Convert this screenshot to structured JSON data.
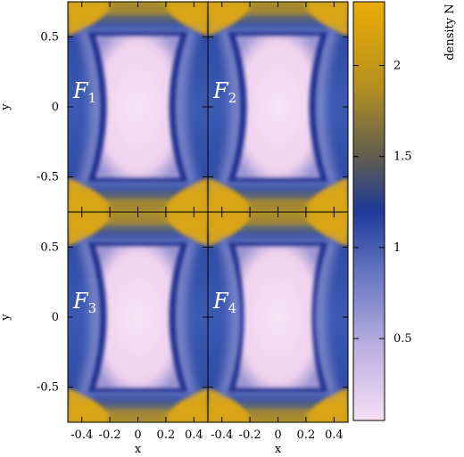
{
  "chart_data": {
    "type": "heatmap",
    "layout": "2x2 panels",
    "panels": [
      {
        "label": "F",
        "subscript": "1"
      },
      {
        "label": "F",
        "subscript": "2"
      },
      {
        "label": "F",
        "subscript": "3"
      },
      {
        "label": "F",
        "subscript": "4"
      }
    ],
    "xlabel": "x",
    "ylabel": "y",
    "xlim": [
      -0.5,
      0.5
    ],
    "ylim": [
      -0.75,
      0.75
    ],
    "x_ticks": [
      -0.4,
      -0.2,
      0,
      0.2,
      0.4
    ],
    "x_tick_labels": [
      "-0.4",
      "-0.2",
      "0",
      "0.2",
      "0.4"
    ],
    "y_ticks": [
      -0.5,
      0,
      0.5
    ],
    "y_tick_labels": [
      "-0.5",
      "0",
      "0.5"
    ],
    "colorbar": {
      "label": "density N",
      "range": [
        0.05,
        2.35
      ],
      "ticks": [
        0.5,
        1,
        1.5,
        2
      ],
      "tick_labels": [
        "0.5",
        "1",
        "1.5",
        "2"
      ],
      "colors": [
        "#f7dff5",
        "#b9aee0",
        "#6273bf",
        "#1e3a9a",
        "#5b5a55",
        "#b5901e",
        "#ecac05"
      ]
    },
    "grid": false
  }
}
